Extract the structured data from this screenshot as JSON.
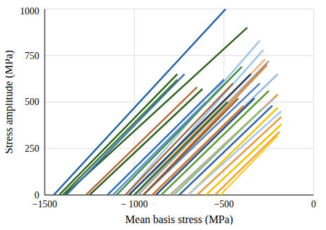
{
  "chart_data": {
    "type": "line",
    "x_label": "Mean basis stress (MPa)",
    "y_label": "Stress amplitude (MPa)",
    "xlim": [
      -1500,
      0
    ],
    "ylim": [
      0,
      1000
    ],
    "xticks": [
      {
        "value": -1500,
        "label": "−1500"
      },
      {
        "value": -1000,
        "label": "− 1000"
      },
      {
        "value": -500,
        "label": "−500"
      },
      0
    ],
    "yticks": [
      0,
      250,
      500,
      750,
      1000
    ],
    "grid": true,
    "series": [
      {
        "color": "#1f5fa0",
        "x": [
          -1450,
          -490
        ],
        "values": [
          0,
          1000
        ]
      },
      {
        "color": "#2e5e1e",
        "x": [
          -1390,
          -370
        ],
        "values": [
          0,
          900
        ]
      },
      {
        "color": "#2e5e1e",
        "x": [
          -1420,
          -760
        ],
        "values": [
          0,
          650
        ]
      },
      {
        "color": "#3b6fb6",
        "x": [
          -1380,
          -720
        ],
        "values": [
          0,
          650
        ]
      },
      {
        "color": "#3f7f2f",
        "x": [
          -1400,
          -760
        ],
        "values": [
          0,
          620
        ]
      },
      {
        "color": "#b36b3a",
        "x": [
          -1270,
          -650
        ],
        "values": [
          0,
          580
        ]
      },
      {
        "color": "#2e5e1e",
        "x": [
          -1250,
          -620
        ],
        "values": [
          0,
          570
        ]
      },
      {
        "color": "#9ec5e8",
        "x": [
          -1050,
          -300
        ],
        "values": [
          0,
          830
        ]
      },
      {
        "color": "#9ec5e8",
        "x": [
          -1000,
          -280
        ],
        "values": [
          0,
          780
        ]
      },
      {
        "color": "#f2b07a",
        "x": [
          -1000,
          -270
        ],
        "values": [
          0,
          730
        ]
      },
      {
        "color": "#a0a0a0",
        "x": [
          -980,
          -250
        ],
        "values": [
          0,
          720
        ]
      },
      {
        "color": "#1f3b5e",
        "x": [
          -1030,
          -350
        ],
        "values": [
          0,
          650
        ]
      },
      {
        "color": "#e07b2a",
        "x": [
          -950,
          -260
        ],
        "values": [
          0,
          700
        ]
      },
      {
        "color": "#3a8a3a",
        "x": [
          -1100,
          -400
        ],
        "values": [
          0,
          690
        ]
      },
      {
        "color": "#2f6db5",
        "x": [
          -1150,
          -500
        ],
        "values": [
          0,
          620
        ]
      },
      {
        "color": "#a5683c",
        "x": [
          -1050,
          -450
        ],
        "values": [
          0,
          600
        ]
      },
      {
        "color": "#8fb6de",
        "x": [
          -900,
          -200
        ],
        "values": [
          0,
          650
        ]
      },
      {
        "color": "#4a7fc0",
        "x": [
          -950,
          -300
        ],
        "values": [
          0,
          600
        ]
      },
      {
        "color": "#5a9a3a",
        "x": [
          -850,
          -250
        ],
        "values": [
          0,
          560
        ]
      },
      {
        "color": "#f08a24",
        "x": [
          -800,
          -200
        ],
        "values": [
          0,
          540
        ]
      },
      {
        "color": "#b0b0b0",
        "x": [
          -800,
          -220
        ],
        "values": [
          0,
          520
        ]
      },
      {
        "color": "#264c7a",
        "x": [
          -880,
          -330
        ],
        "values": [
          0,
          520
        ]
      },
      {
        "color": "#2e6b2e",
        "x": [
          -1000,
          -480
        ],
        "values": [
          0,
          500
        ]
      },
      {
        "color": "#5b8fd0",
        "x": [
          -1120,
          -600
        ],
        "values": [
          0,
          500
        ]
      },
      {
        "color": "#8b5a2b",
        "x": [
          -950,
          -420
        ],
        "values": [
          0,
          520
        ]
      },
      {
        "color": "#d9752a",
        "x": [
          -900,
          -390
        ],
        "values": [
          0,
          480
        ]
      },
      {
        "color": "#2f5fa8",
        "x": [
          -750,
          -230
        ],
        "values": [
          0,
          480
        ]
      },
      {
        "color": "#8cc07a",
        "x": [
          -780,
          -290
        ],
        "values": [
          0,
          460
        ]
      },
      {
        "color": "#f5c400",
        "x": [
          -700,
          -200
        ],
        "values": [
          0,
          470
        ]
      },
      {
        "color": "#a8c8e8",
        "x": [
          -700,
          -180
        ],
        "values": [
          0,
          450
        ]
      },
      {
        "color": "#e8953a",
        "x": [
          -650,
          -180
        ],
        "values": [
          0,
          420
        ]
      },
      {
        "color": "#f2c200",
        "x": [
          -600,
          -180
        ],
        "values": [
          0,
          380
        ]
      },
      {
        "color": "#f2a030",
        "x": [
          -550,
          -190
        ],
        "values": [
          0,
          340
        ]
      },
      {
        "color": "#f7cf30",
        "x": [
          -520,
          -200
        ],
        "values": [
          0,
          320
        ]
      }
    ]
  }
}
